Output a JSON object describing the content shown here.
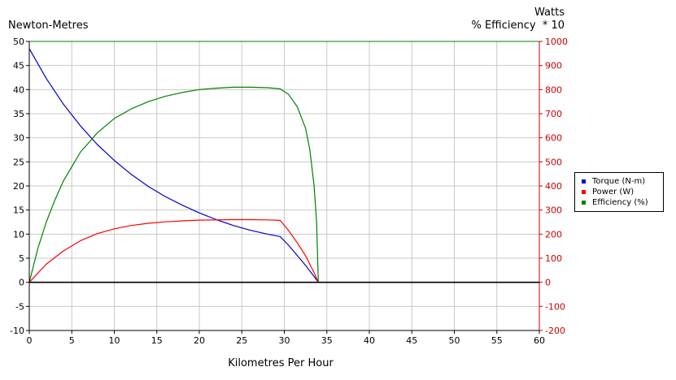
{
  "chart_data": {
    "type": "line",
    "xlabel": "Kilometres Per Hour",
    "ylabel_left": "Newton-Metres",
    "ylabel_right_lines": [
      "Watts",
      "% Efficiency  * 10"
    ],
    "xlim": [
      0,
      60
    ],
    "ylim_left": [
      -10,
      50
    ],
    "ylim_right": [
      -200,
      1000
    ],
    "x_ticks": [
      0,
      5,
      10,
      15,
      20,
      25,
      30,
      35,
      40,
      45,
      50,
      55,
      60
    ],
    "y_ticks_left": [
      -10,
      -5,
      0,
      5,
      10,
      15,
      20,
      25,
      30,
      35,
      40,
      45,
      50
    ],
    "y_ticks_right": [
      -200,
      -100,
      0,
      100,
      200,
      300,
      400,
      500,
      600,
      700,
      800,
      900,
      1000
    ],
    "grid": true,
    "legend_position": "right",
    "legend": [
      "Torque (N-m)",
      "Power (W)",
      "Efficiency (%)"
    ],
    "series": [
      {
        "name": "Torque (N-m)",
        "axis": "left",
        "color": "#0000cc",
        "points": [
          [
            0,
            48.5
          ],
          [
            2,
            42.3
          ],
          [
            4,
            37.0
          ],
          [
            6,
            32.5
          ],
          [
            8,
            28.6
          ],
          [
            10,
            25.3
          ],
          [
            12,
            22.4
          ],
          [
            14,
            19.9
          ],
          [
            16,
            17.8
          ],
          [
            18,
            16.0
          ],
          [
            20,
            14.4
          ],
          [
            22,
            13.0
          ],
          [
            24,
            11.8
          ],
          [
            26,
            10.8
          ],
          [
            28,
            10.0
          ],
          [
            29.5,
            9.5
          ],
          [
            30.5,
            7.7
          ],
          [
            31.5,
            5.6
          ],
          [
            32.5,
            3.5
          ],
          [
            33.5,
            1.2
          ],
          [
            34,
            0
          ],
          [
            60,
            0
          ]
        ]
      },
      {
        "name": "Power (W)",
        "axis": "right",
        "color": "#ff0000",
        "points": [
          [
            0,
            0
          ],
          [
            2,
            75
          ],
          [
            4,
            130
          ],
          [
            6,
            172
          ],
          [
            8,
            202
          ],
          [
            10,
            222
          ],
          [
            12,
            236
          ],
          [
            14,
            245
          ],
          [
            16,
            251
          ],
          [
            18,
            255
          ],
          [
            20,
            258
          ],
          [
            22,
            259
          ],
          [
            24,
            260
          ],
          [
            26,
            260
          ],
          [
            28,
            259
          ],
          [
            29.5,
            257
          ],
          [
            30.5,
            215
          ],
          [
            31.5,
            165
          ],
          [
            32.5,
            110
          ],
          [
            33.5,
            40
          ],
          [
            34,
            0
          ],
          [
            60,
            0
          ]
        ]
      },
      {
        "name": "Efficiency (%)",
        "axis": "right",
        "color": "#008000",
        "points": [
          [
            0,
            0
          ],
          [
            1,
            140
          ],
          [
            2,
            250
          ],
          [
            3,
            340
          ],
          [
            4,
            420
          ],
          [
            5,
            480
          ],
          [
            6,
            540
          ],
          [
            7,
            580
          ],
          [
            8,
            620
          ],
          [
            10,
            680
          ],
          [
            12,
            720
          ],
          [
            14,
            750
          ],
          [
            16,
            772
          ],
          [
            18,
            788
          ],
          [
            20,
            800
          ],
          [
            22,
            806
          ],
          [
            24,
            810
          ],
          [
            26,
            810
          ],
          [
            28,
            808
          ],
          [
            29.5,
            803
          ],
          [
            30.5,
            780
          ],
          [
            31.5,
            730
          ],
          [
            32.5,
            640
          ],
          [
            33.0,
            550
          ],
          [
            33.5,
            400
          ],
          [
            33.8,
            250
          ],
          [
            34,
            0
          ],
          [
            60,
            0
          ]
        ]
      }
    ]
  }
}
